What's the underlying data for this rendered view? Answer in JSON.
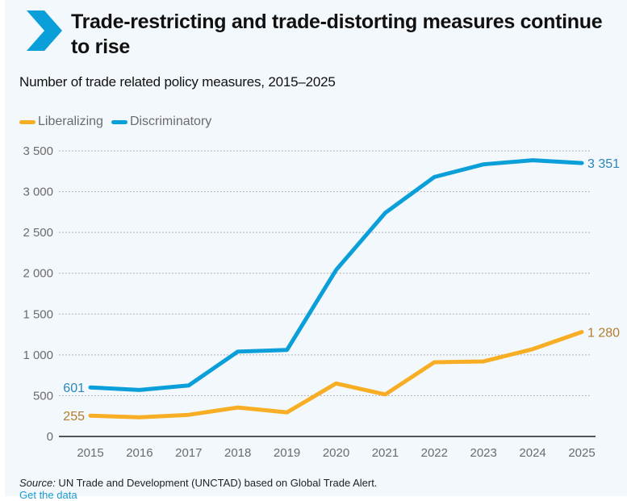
{
  "header": {
    "icon": "chevron-right-icon",
    "title": "Trade-restricting and trade-distorting measures continue to rise",
    "subtitle": "Number of trade related policy measures, 2015–2025"
  },
  "footer": {
    "source_label": "Source:",
    "source_text": " UN Trade and Development (UNCTAD) based on Global Trade Alert.",
    "link_label": "Get the data"
  },
  "colors": {
    "accent": "#0a9fd8",
    "liberalizing": "#f7ae24",
    "discriminatory": "#0a9fd8",
    "background": "#f3f8fc"
  },
  "chart_data": {
    "type": "line",
    "title": "Number of trade related policy measures, 2015–2025",
    "xlabel": "",
    "ylabel": "",
    "x": [
      "2015",
      "2016",
      "2017",
      "2018",
      "2019",
      "2020",
      "2021",
      "2022",
      "2023",
      "2024",
      "2025"
    ],
    "ylim": [
      0,
      3500
    ],
    "yticks": [
      0,
      500,
      1000,
      1500,
      2000,
      2500,
      3000,
      3500
    ],
    "ytick_labels": [
      "0",
      "500",
      "1 000",
      "1 500",
      "2 000",
      "2 500",
      "3 000",
      "3 500"
    ],
    "grid": true,
    "legend_position": "top-left",
    "series": [
      {
        "name": "Liberalizing",
        "color": "#f7ae24",
        "label_color": "#b07d2a",
        "values": [
          255,
          235,
          265,
          355,
          295,
          650,
          515,
          910,
          920,
          1070,
          1280
        ],
        "start_label": "255",
        "end_label": "1 280"
      },
      {
        "name": "Discriminatory",
        "color": "#0a9fd8",
        "label_color": "#2a86b8",
        "values": [
          601,
          570,
          625,
          1040,
          1060,
          2040,
          2740,
          3180,
          3335,
          3385,
          3351
        ],
        "start_label": "601",
        "end_label": "3 351"
      }
    ]
  }
}
